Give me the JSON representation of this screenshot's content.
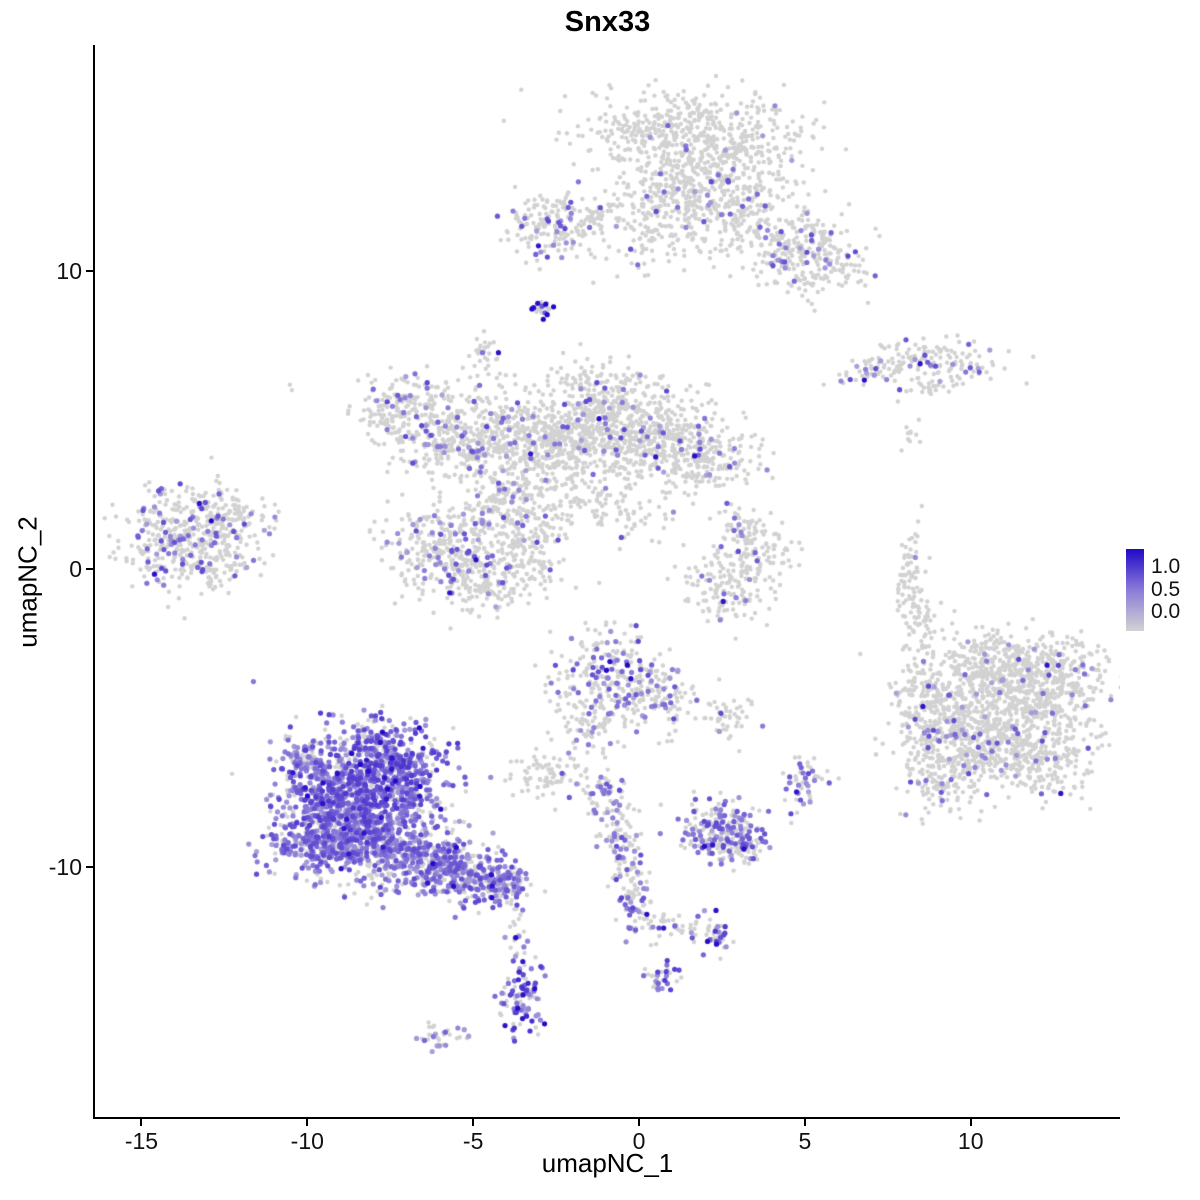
{
  "chart_data": {
    "type": "scatter",
    "title": "Snx33",
    "xlabel": "umapNC_1",
    "ylabel": "umapNC_2",
    "x_range": [
      -16.4,
      14.5
    ],
    "y_range": [
      -18.4,
      17.6
    ],
    "x_ticks": [
      -15,
      -10,
      -5,
      0,
      5,
      10
    ],
    "y_ticks": [
      -10,
      0,
      10
    ],
    "grid": false,
    "legend": {
      "position": "right",
      "ticks": [
        "1.0",
        "0.5",
        "0.0"
      ],
      "tick_values": [
        1.0,
        0.5,
        0.0
      ]
    },
    "colors": {
      "low": "#D3D3D3",
      "mid": "#8C7BD8",
      "high": "#2108C7",
      "grey_point": "#D2D2D2",
      "axis": "#000000",
      "background": "#FFFFFF"
    },
    "seed": 42,
    "point_radius_grey": 2.2,
    "point_radius_expr": 2.6,
    "clusters": [
      {
        "x": 1.5,
        "y": 14.6,
        "sx": 1.7,
        "sy": 0.75,
        "rot": 0,
        "n": 480,
        "f": 0.03
      },
      {
        "x": 2.3,
        "y": 13.2,
        "sx": 1.2,
        "sy": 0.8,
        "rot": 0,
        "n": 280,
        "f": 0.04
      },
      {
        "x": 1.0,
        "y": 12.3,
        "sx": 0.8,
        "sy": 0.7,
        "rot": 0,
        "n": 160,
        "f": 0.05
      },
      {
        "x": 3.9,
        "y": 11.4,
        "sx": 1.1,
        "sy": 0.7,
        "rot": -20,
        "n": 240,
        "f": 0.08
      },
      {
        "x": 5.3,
        "y": 10.3,
        "sx": 0.8,
        "sy": 0.6,
        "rot": 0,
        "n": 160,
        "f": 0.12
      },
      {
        "x": -2.7,
        "y": 11.5,
        "sx": 0.6,
        "sy": 0.5,
        "rot": 0,
        "n": 130,
        "f": 0.2,
        "dk": 0.05
      },
      {
        "x": -1.2,
        "y": 11.9,
        "sx": 1.0,
        "sy": 0.45,
        "rot": 10,
        "n": 100,
        "f": 0.05
      },
      {
        "x": 0.2,
        "y": 11.0,
        "sx": 0.9,
        "sy": 0.5,
        "rot": 0,
        "n": 50,
        "f": 0.04
      },
      {
        "x": -2.9,
        "y": 8.7,
        "sx": 0.18,
        "sy": 0.2,
        "rot": 0,
        "n": 22,
        "f": 0.5,
        "lvl": 0.9,
        "dk": 0.2
      },
      {
        "x": -4.6,
        "y": 7.3,
        "sx": 0.25,
        "sy": 0.3,
        "rot": 0,
        "n": 26,
        "f": 0.12
      },
      {
        "x": 7.4,
        "y": 6.8,
        "sx": 0.7,
        "sy": 0.25,
        "rot": 15,
        "n": 70,
        "f": 0.15
      },
      {
        "x": 9.3,
        "y": 7.1,
        "sx": 0.9,
        "sy": 0.3,
        "rot": -8,
        "n": 90,
        "f": 0.12,
        "dk": 0.06
      },
      {
        "x": 8.9,
        "y": 6.2,
        "sx": 0.5,
        "sy": 0.2,
        "rot": 0,
        "n": 36,
        "f": 0.06
      },
      {
        "x": 8.2,
        "y": 4.6,
        "sx": 0.15,
        "sy": 0.25,
        "rot": 0,
        "n": 10,
        "f": 0
      },
      {
        "x": -7.0,
        "y": 5.3,
        "sx": 0.85,
        "sy": 0.7,
        "rot": 0,
        "n": 230,
        "f": 0.12
      },
      {
        "x": -5.6,
        "y": 4.3,
        "sx": 0.7,
        "sy": 0.6,
        "rot": 0,
        "n": 160,
        "f": 0.08
      },
      {
        "x": -4.3,
        "y": 4.8,
        "sx": 0.9,
        "sy": 0.7,
        "rot": 0,
        "n": 210,
        "f": 0.07
      },
      {
        "x": -3.0,
        "y": 3.6,
        "sx": 0.9,
        "sy": 0.8,
        "rot": 0,
        "n": 210,
        "f": 0.06
      },
      {
        "x": -1.2,
        "y": 5.4,
        "sx": 0.95,
        "sy": 0.8,
        "rot": 0,
        "n": 360,
        "f": 0.07
      },
      {
        "x": 0.3,
        "y": 4.4,
        "sx": 1.0,
        "sy": 0.9,
        "rot": 0,
        "n": 340,
        "f": 0.07
      },
      {
        "x": 1.9,
        "y": 3.8,
        "sx": 0.9,
        "sy": 0.6,
        "rot": 0,
        "n": 210,
        "f": 0.1
      },
      {
        "x": -2.0,
        "y": 4.3,
        "sx": 0.7,
        "sy": 0.6,
        "rot": 0,
        "n": 160,
        "f": 0.05
      },
      {
        "x": -4.0,
        "y": 2.2,
        "sx": 0.8,
        "sy": 0.8,
        "rot": 0,
        "n": 180,
        "f": 0.08
      },
      {
        "x": -5.8,
        "y": 0.6,
        "sx": 0.95,
        "sy": 0.85,
        "rot": 0,
        "n": 310,
        "f": 0.15
      },
      {
        "x": -4.6,
        "y": -0.3,
        "sx": 0.7,
        "sy": 0.5,
        "rot": 0,
        "n": 150,
        "f": 0.12
      },
      {
        "x": -3.2,
        "y": 0.9,
        "sx": 0.6,
        "sy": 0.9,
        "rot": 0,
        "n": 130,
        "f": 0.08
      },
      {
        "x": -0.8,
        "y": 2.0,
        "sx": 1.2,
        "sy": 0.5,
        "rot": -25,
        "n": 100,
        "f": 0.04
      },
      {
        "x": -13.9,
        "y": 1.1,
        "sx": 0.95,
        "sy": 0.8,
        "rot": 0,
        "n": 340,
        "f": 0.22
      },
      {
        "x": -12.4,
        "y": 1.8,
        "sx": 0.6,
        "sy": 0.5,
        "rot": 0,
        "n": 110,
        "f": 0.1
      },
      {
        "x": -12.6,
        "y": 0.2,
        "sx": 0.55,
        "sy": 0.4,
        "rot": 0,
        "n": 80,
        "f": 0.08
      },
      {
        "x": -10.5,
        "y": 6.1,
        "sx": 0.1,
        "sy": 0.1,
        "rot": 0,
        "n": 2,
        "f": 0
      },
      {
        "x": 2.6,
        "y": -0.5,
        "sx": 0.6,
        "sy": 0.7,
        "rot": 0,
        "n": 130,
        "f": 0.07,
        "dk": 0.08
      },
      {
        "x": 3.6,
        "y": 0.4,
        "sx": 0.5,
        "sy": 0.6,
        "rot": 0,
        "n": 90,
        "f": 0.04
      },
      {
        "x": 3.1,
        "y": 1.3,
        "sx": 0.5,
        "sy": 0.4,
        "rot": 0,
        "n": 60,
        "f": 0.05
      },
      {
        "x": 8.2,
        "y": -0.4,
        "sx": 0.22,
        "sy": 0.95,
        "rot": 0,
        "n": 80,
        "f": 0.03
      },
      {
        "x": 8.6,
        "y": -1.9,
        "sx": 0.25,
        "sy": 0.5,
        "rot": 0,
        "n": 40,
        "f": 0.02
      },
      {
        "x": 11.2,
        "y": -4.6,
        "sx": 1.4,
        "sy": 1.1,
        "rot": 0,
        "n": 720,
        "f": 0.06
      },
      {
        "x": 9.7,
        "y": -5.7,
        "sx": 0.9,
        "sy": 0.9,
        "rot": 0,
        "n": 290,
        "f": 0.1
      },
      {
        "x": 12.6,
        "y": -3.5,
        "sx": 0.7,
        "sy": 0.7,
        "rot": 0,
        "n": 160,
        "f": 0.05
      },
      {
        "x": 8.6,
        "y": -4.4,
        "sx": 0.5,
        "sy": 0.8,
        "rot": 0,
        "n": 120,
        "f": 0.08,
        "dk": 0.05
      },
      {
        "x": 10.7,
        "y": -3.0,
        "sx": 0.9,
        "sy": 0.45,
        "rot": 0,
        "n": 160,
        "f": 0.04
      },
      {
        "x": 11.8,
        "y": -6.4,
        "sx": 0.9,
        "sy": 0.7,
        "rot": 0,
        "n": 210,
        "f": 0.06
      },
      {
        "x": 9.0,
        "y": -7.2,
        "sx": 0.5,
        "sy": 0.55,
        "rot": 0,
        "n": 90,
        "f": 0.12,
        "dk": 0.05
      },
      {
        "x": -0.9,
        "y": -3.6,
        "sx": 0.9,
        "sy": 0.8,
        "rot": 0,
        "n": 260,
        "f": 0.25,
        "dk": 0.08
      },
      {
        "x": 0.6,
        "y": -4.4,
        "sx": 0.5,
        "sy": 0.5,
        "rot": 0,
        "n": 90,
        "f": 0.2
      },
      {
        "x": -1.6,
        "y": -5.3,
        "sx": 0.4,
        "sy": 0.55,
        "rot": 0,
        "n": 60,
        "f": 0.15
      },
      {
        "x": 2.7,
        "y": -4.9,
        "sx": 0.4,
        "sy": 0.3,
        "rot": 0,
        "n": 45,
        "f": 0.1
      },
      {
        "x": -2.9,
        "y": -6.9,
        "sx": 0.6,
        "sy": 0.35,
        "rot": -10,
        "n": 75,
        "f": 0.05
      },
      {
        "x": -1.1,
        "y": -7.6,
        "sx": 0.35,
        "sy": 0.45,
        "rot": 0,
        "n": 50,
        "f": 0.3,
        "dk": 0.06
      },
      {
        "x": 4.9,
        "y": -7.2,
        "sx": 0.35,
        "sy": 0.5,
        "rot": 0,
        "n": 50,
        "f": 0.35,
        "dk": 0.1
      },
      {
        "x": -8.7,
        "y": -7.8,
        "sx": 1.1,
        "sy": 1.0,
        "rot": 0,
        "n": 720,
        "f": 0.8,
        "lvl": 0.55
      },
      {
        "x": -7.3,
        "y": -7.0,
        "sx": 0.8,
        "sy": 0.7,
        "rot": 0,
        "n": 280,
        "f": 0.72,
        "lvl": 0.55
      },
      {
        "x": -9.6,
        "y": -9.1,
        "sx": 0.8,
        "sy": 0.7,
        "rot": 0,
        "n": 280,
        "f": 0.75,
        "lvl": 0.5
      },
      {
        "x": -7.6,
        "y": -9.3,
        "sx": 0.9,
        "sy": 0.75,
        "rot": 0,
        "n": 320,
        "f": 0.7,
        "lvl": 0.5
      },
      {
        "x": -6.2,
        "y": -9.9,
        "sx": 0.8,
        "sy": 0.55,
        "rot": -20,
        "n": 240,
        "f": 0.65,
        "lvl": 0.5
      },
      {
        "x": -4.9,
        "y": -10.3,
        "sx": 0.7,
        "sy": 0.45,
        "rot": -15,
        "n": 180,
        "f": 0.6,
        "lvl": 0.5
      },
      {
        "x": -4.1,
        "y": -10.5,
        "sx": 0.4,
        "sy": 0.3,
        "rot": 0,
        "n": 70,
        "f": 0.55,
        "lvl": 0.5
      },
      {
        "x": -9.9,
        "y": -6.5,
        "sx": 0.5,
        "sy": 0.5,
        "rot": 0,
        "n": 110,
        "f": 0.6,
        "lvl": 0.5
      },
      {
        "x": -7.9,
        "y": -6.0,
        "sx": 0.7,
        "sy": 0.5,
        "rot": 0,
        "n": 160,
        "f": 0.62,
        "lvl": 0.55,
        "dk": 0.05
      },
      {
        "x": -3.8,
        "y": -11.7,
        "sx": 0.18,
        "sy": 0.5,
        "rot": 0,
        "n": 20,
        "f": 0.3,
        "lvl": 0.5
      },
      {
        "x": -3.6,
        "y": -12.9,
        "sx": 0.15,
        "sy": 0.4,
        "rot": 0,
        "n": 16,
        "f": 0.3,
        "lvl": 0.5
      },
      {
        "x": -3.5,
        "y": -14.4,
        "sx": 0.35,
        "sy": 0.65,
        "rot": 0,
        "n": 90,
        "f": 0.6,
        "lvl": 0.6,
        "dk": 0.12
      },
      {
        "x": -6.0,
        "y": -15.7,
        "sx": 0.35,
        "sy": 0.2,
        "rot": 0,
        "n": 34,
        "f": 0.3,
        "lvl": 0.45
      },
      {
        "x": -0.6,
        "y": -8.7,
        "sx": 0.28,
        "sy": 0.5,
        "rot": 0,
        "n": 55,
        "f": 0.3,
        "lvl": 0.5
      },
      {
        "x": -0.4,
        "y": -9.9,
        "sx": 0.25,
        "sy": 0.5,
        "rot": 0,
        "n": 50,
        "f": 0.35,
        "lvl": 0.55,
        "dk": 0.1
      },
      {
        "x": -0.1,
        "y": -11.3,
        "sx": 0.28,
        "sy": 0.5,
        "rot": 0,
        "n": 55,
        "f": 0.4,
        "lvl": 0.55
      },
      {
        "x": 1.1,
        "y": -12.0,
        "sx": 0.7,
        "sy": 0.28,
        "rot": -15,
        "n": 40,
        "f": 0.2,
        "lvl": 0.5
      },
      {
        "x": 2.4,
        "y": -8.8,
        "sx": 0.6,
        "sy": 0.5,
        "rot": 0,
        "n": 180,
        "f": 0.5,
        "lvl": 0.5
      },
      {
        "x": 3.1,
        "y": -9.3,
        "sx": 0.4,
        "sy": 0.3,
        "rot": 0,
        "n": 70,
        "f": 0.45,
        "lvl": 0.5
      },
      {
        "x": 2.3,
        "y": -12.3,
        "sx": 0.28,
        "sy": 0.3,
        "rot": 0,
        "n": 40,
        "f": 0.5,
        "lvl": 0.55,
        "dk": 0.08
      },
      {
        "x": 0.7,
        "y": -13.8,
        "sx": 0.25,
        "sy": 0.25,
        "rot": 0,
        "n": 34,
        "f": 0.5,
        "lvl": 0.55,
        "dk": 0.1
      }
    ]
  }
}
